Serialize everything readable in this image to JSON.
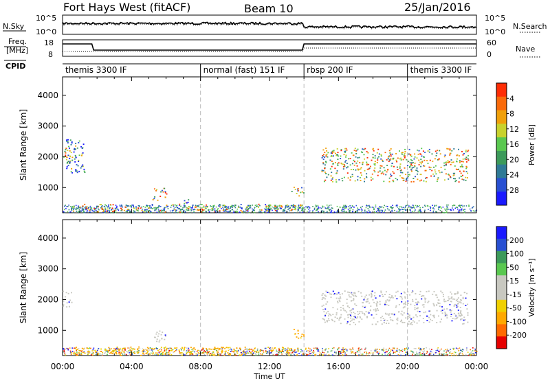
{
  "header": {
    "title": "Fort Hays West (fitACF)",
    "beam": "Beam 10",
    "date": "25/Jan/2016"
  },
  "noise_panel": {
    "left_label": "N.Sky",
    "left_ticks": [
      "10^5",
      "10^0"
    ],
    "right_label": "N.Search",
    "right_ticks": [
      "10^5",
      "10^0"
    ]
  },
  "freq_panel": {
    "left_label_1": "Freq.",
    "left_label_2": "[MHz]",
    "left_ticks": [
      "18",
      "8"
    ],
    "right_label": "Nave",
    "right_ticks": [
      "60",
      "0"
    ]
  },
  "cpid": {
    "label": "CPID",
    "segments": [
      {
        "start_hour": 0.0,
        "label": "themis 3300 IF"
      },
      {
        "start_hour": 8.0,
        "label": "normal (fast) 151 IF"
      },
      {
        "start_hour": 14.0,
        "label": "rbsp 200 IF"
      },
      {
        "start_hour": 20.0,
        "label": "themis 3300 IF"
      }
    ]
  },
  "chart_data": [
    {
      "type": "heatmap",
      "name": "power",
      "ylabel": "Slant Range [km]",
      "yticks": [
        1000,
        2000,
        3000,
        4000
      ],
      "ylim": [
        180,
        4600
      ],
      "xlim": [
        0,
        24
      ],
      "colorbar": {
        "label": "Power [dB]",
        "ticks": [
          "4",
          "8",
          "12",
          "16",
          "20",
          "24",
          "28"
        ],
        "range": [
          0,
          30
        ]
      },
      "colors": [
        "#1a1aff",
        "#2850d2",
        "#2f7a96",
        "#3c9a5a",
        "#5ac850",
        "#c8d22d",
        "#f0a00a",
        "#fa6a0a",
        "#ff2d05"
      ],
      "regions": [
        {
          "x": [
            0.0,
            0.5
          ],
          "y": [
            1750,
            2300
          ],
          "level": 0.55
        },
        {
          "x": [
            0.2,
            1.3
          ],
          "y": [
            1500,
            2600
          ],
          "level": 0.3
        },
        {
          "x": [
            5.2,
            6.0
          ],
          "y": [
            600,
            1000
          ],
          "level": 0.5
        },
        {
          "x": [
            7.0,
            7.4
          ],
          "y": [
            450,
            700
          ],
          "level": 0.4
        },
        {
          "x": [
            13.2,
            14.0
          ],
          "y": [
            750,
            1050
          ],
          "level": 0.45
        },
        {
          "x": [
            15.0,
            23.5
          ],
          "y": [
            1200,
            2300
          ],
          "level": 0.6
        },
        {
          "x": [
            0.5,
            14.0
          ],
          "y": [
            200,
            480
          ],
          "level": 0.55
        }
      ]
    },
    {
      "type": "heatmap",
      "name": "velocity",
      "ylabel": "Slant Range [km]",
      "yticks": [
        1000,
        2000,
        3000,
        4000
      ],
      "ylim": [
        180,
        4600
      ],
      "xlim": [
        0,
        24
      ],
      "xticks": [
        "00:00",
        "04:00",
        "08:00",
        "12:00",
        "16:00",
        "20:00",
        "00:00"
      ],
      "xlabel": "Time UT",
      "colorbar": {
        "label": "Velocity [m s⁻¹]",
        "ticks": [
          "200",
          "100",
          "50",
          "15",
          "-15",
          "-50",
          "-100",
          "-200"
        ],
        "range": [
          -250,
          250
        ]
      },
      "colors": [
        "#e60000",
        "#ff6a00",
        "#ffa800",
        "#f0d000",
        "#c8c8c0",
        "#c8c8c0",
        "#5ac850",
        "#3c9a5a",
        "#2850d2",
        "#1a1aff"
      ],
      "regions": [
        {
          "x": [
            0.0,
            0.5
          ],
          "y": [
            1750,
            2300
          ],
          "level": 0.0
        },
        {
          "x": [
            5.2,
            6.0
          ],
          "y": [
            600,
            1000
          ],
          "level": 0.0
        },
        {
          "x": [
            13.2,
            14.0
          ],
          "y": [
            750,
            1050
          ],
          "level": -60
        },
        {
          "x": [
            15.0,
            23.5
          ],
          "y": [
            1200,
            2300
          ],
          "level": 0.0
        },
        {
          "x": [
            0.5,
            14.0
          ],
          "y": [
            200,
            480
          ],
          "level": -60
        }
      ]
    }
  ]
}
